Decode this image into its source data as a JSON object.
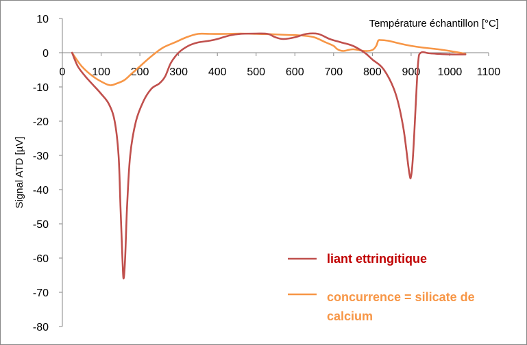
{
  "chart_data": {
    "type": "line",
    "title": "",
    "xlabel": "Température échantillon [°C]",
    "ylabel": "Signal ATD [µV]",
    "xlim": [
      0,
      1100
    ],
    "ylim": [
      -80,
      10
    ],
    "x_ticks": [
      "0",
      "100",
      "200",
      "300",
      "400",
      "500",
      "600",
      "700",
      "800",
      "900",
      "1000",
      "1100"
    ],
    "y_ticks": [
      "10",
      "0",
      "-10",
      "-20",
      "-30",
      "-40",
      "-50",
      "-60",
      "-70",
      "-80"
    ],
    "grid": false,
    "legend_position": "bottom-right",
    "series": [
      {
        "name": "liant ettringitique",
        "color": "#c0504d",
        "legend_color": "#c00000",
        "points": [
          [
            25,
            0
          ],
          [
            40,
            -4
          ],
          [
            60,
            -7
          ],
          [
            80,
            -9.5
          ],
          [
            100,
            -12
          ],
          [
            120,
            -15
          ],
          [
            135,
            -20
          ],
          [
            145,
            -30
          ],
          [
            150,
            -45
          ],
          [
            155,
            -60
          ],
          [
            158,
            -66
          ],
          [
            162,
            -60
          ],
          [
            167,
            -45
          ],
          [
            175,
            -30
          ],
          [
            190,
            -20
          ],
          [
            210,
            -14
          ],
          [
            230,
            -10.5
          ],
          [
            250,
            -9
          ],
          [
            265,
            -7
          ],
          [
            280,
            -3
          ],
          [
            300,
            0
          ],
          [
            325,
            2
          ],
          [
            350,
            3
          ],
          [
            380,
            3.5
          ],
          [
            400,
            4
          ],
          [
            430,
            5
          ],
          [
            460,
            5.5
          ],
          [
            500,
            5.6
          ],
          [
            530,
            5.5
          ],
          [
            550,
            4.5
          ],
          [
            570,
            4
          ],
          [
            600,
            4.5
          ],
          [
            630,
            5.5
          ],
          [
            660,
            5.5
          ],
          [
            690,
            4
          ],
          [
            720,
            3
          ],
          [
            750,
            2
          ],
          [
            780,
            0
          ],
          [
            800,
            -2
          ],
          [
            830,
            -5
          ],
          [
            860,
            -12
          ],
          [
            880,
            -22
          ],
          [
            895,
            -35
          ],
          [
            900,
            -36
          ],
          [
            905,
            -30
          ],
          [
            912,
            -15
          ],
          [
            918,
            -3
          ],
          [
            925,
            0
          ],
          [
            950,
            -0.2
          ],
          [
            1000,
            -0.5
          ],
          [
            1040,
            -0.5
          ]
        ]
      },
      {
        "name": "concurrence = silicate de calcium",
        "color": "#f79646",
        "legend_color": "#f79646",
        "points": [
          [
            25,
            0
          ],
          [
            50,
            -4
          ],
          [
            80,
            -7
          ],
          [
            110,
            -9
          ],
          [
            125,
            -9.5
          ],
          [
            140,
            -9
          ],
          [
            160,
            -8
          ],
          [
            180,
            -6
          ],
          [
            200,
            -4
          ],
          [
            230,
            -1
          ],
          [
            260,
            1.5
          ],
          [
            290,
            3
          ],
          [
            320,
            4.5
          ],
          [
            350,
            5.5
          ],
          [
            380,
            5.5
          ],
          [
            420,
            5.5
          ],
          [
            460,
            5.6
          ],
          [
            500,
            5.5
          ],
          [
            540,
            5.4
          ],
          [
            580,
            5.2
          ],
          [
            620,
            5
          ],
          [
            650,
            4.5
          ],
          [
            680,
            3
          ],
          [
            700,
            2
          ],
          [
            710,
            1
          ],
          [
            725,
            0.5
          ],
          [
            750,
            1
          ],
          [
            780,
            0.5
          ],
          [
            800,
            0.8
          ],
          [
            810,
            2
          ],
          [
            815,
            3.5
          ],
          [
            820,
            3.7
          ],
          [
            840,
            3.5
          ],
          [
            870,
            2.7
          ],
          [
            900,
            2
          ],
          [
            930,
            1.5
          ],
          [
            970,
            1
          ],
          [
            1000,
            0.5
          ],
          [
            1040,
            -0.3
          ]
        ]
      }
    ]
  }
}
